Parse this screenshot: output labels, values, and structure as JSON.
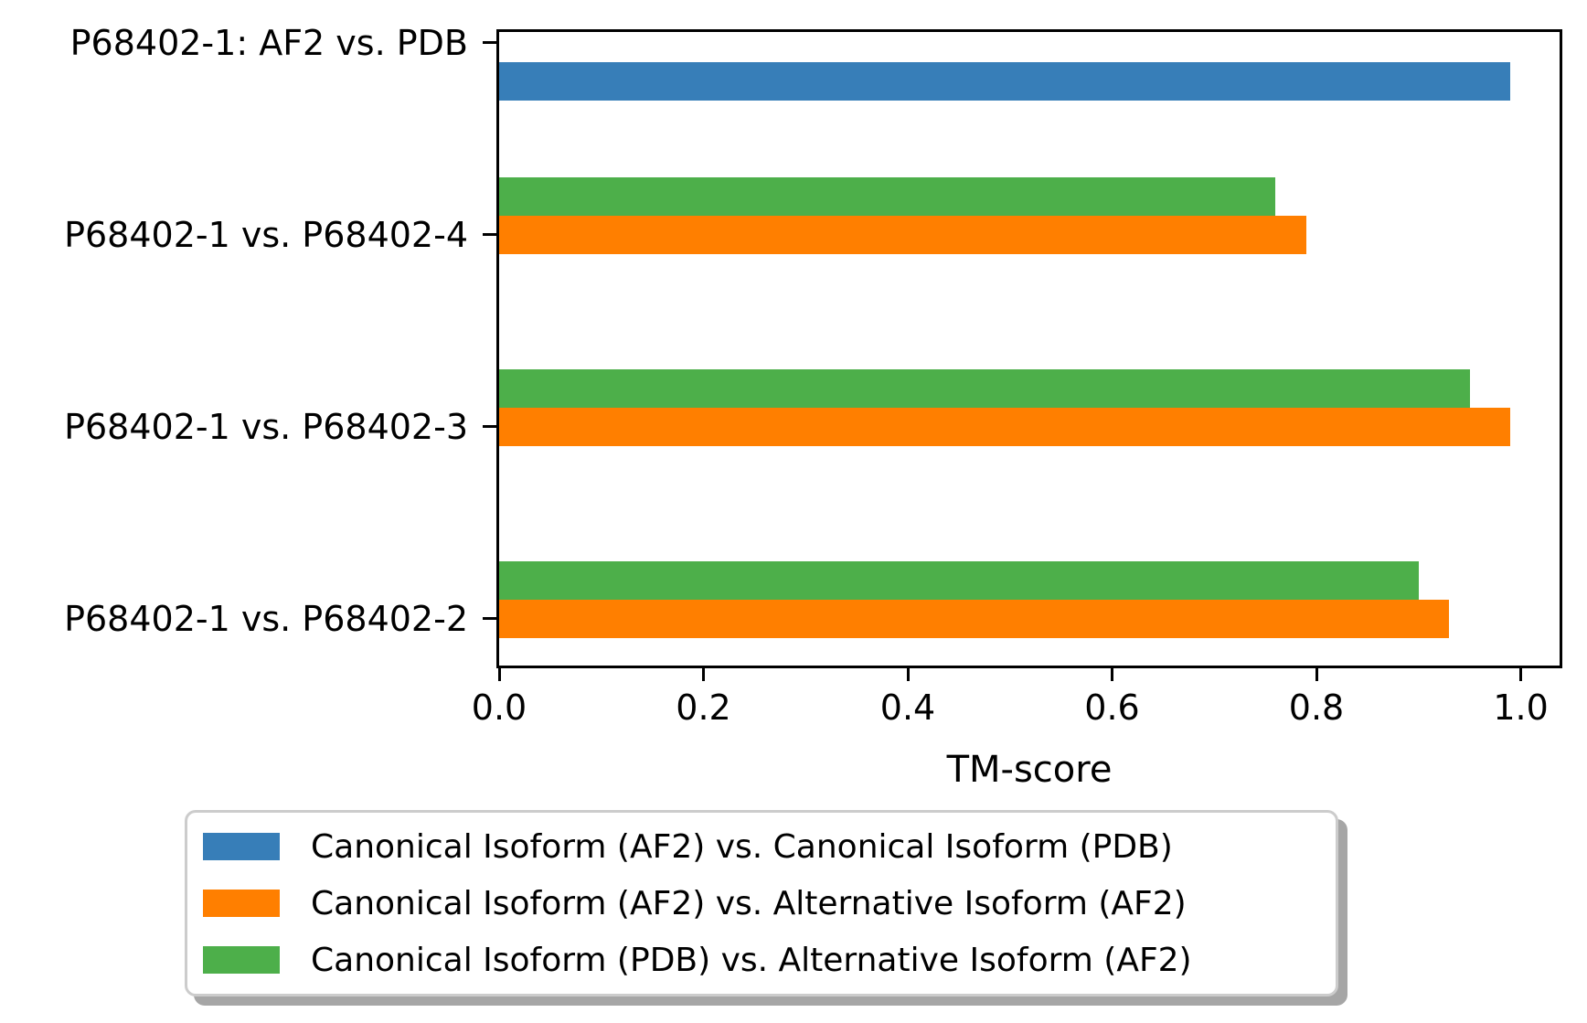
{
  "chart_data": {
    "type": "bar",
    "orientation": "horizontal",
    "title": "",
    "xlabel": "TM-score",
    "ylabel": "",
    "categories": [
      "P68402-1: AF2 vs. PDB",
      "P68402-1 vs. P68402-4",
      "P68402-1 vs. P68402-3",
      "P68402-1 vs. P68402-2"
    ],
    "series": [
      {
        "name": "Canonical Isoform (AF2) vs. Canonical Isoform (PDB)",
        "color": "#377eb8",
        "offset": -0.2,
        "values": [
          0.99,
          null,
          null,
          null
        ]
      },
      {
        "name": "Canonical Isoform (AF2) vs. Alternative Isoform (AF2)",
        "color": "#ff7f00",
        "offset": 0,
        "values": [
          null,
          0.79,
          0.99,
          0.93
        ]
      },
      {
        "name": "Canonical Isoform (PDB) vs. Alternative Isoform (AF2)",
        "color": "#4daf4a",
        "offset": 0.2,
        "values": [
          null,
          0.76,
          0.95,
          0.9
        ]
      }
    ],
    "bar_height": 0.2,
    "xlim": [
      0,
      1.038
    ],
    "ylim": [
      -0.243,
      3.057
    ],
    "xticks": {
      "values": [
        0,
        0.2,
        0.4,
        0.6,
        0.8,
        1.0
      ],
      "labels": [
        "0.0",
        "0.2",
        "0.4",
        "0.6",
        "0.8",
        "1.0"
      ]
    },
    "grid": false,
    "legend_position": "below-axis",
    "spine_color": "#000000",
    "legend_border_color": "#cccccc",
    "legend_shadow_color": "#a6a6a6"
  }
}
